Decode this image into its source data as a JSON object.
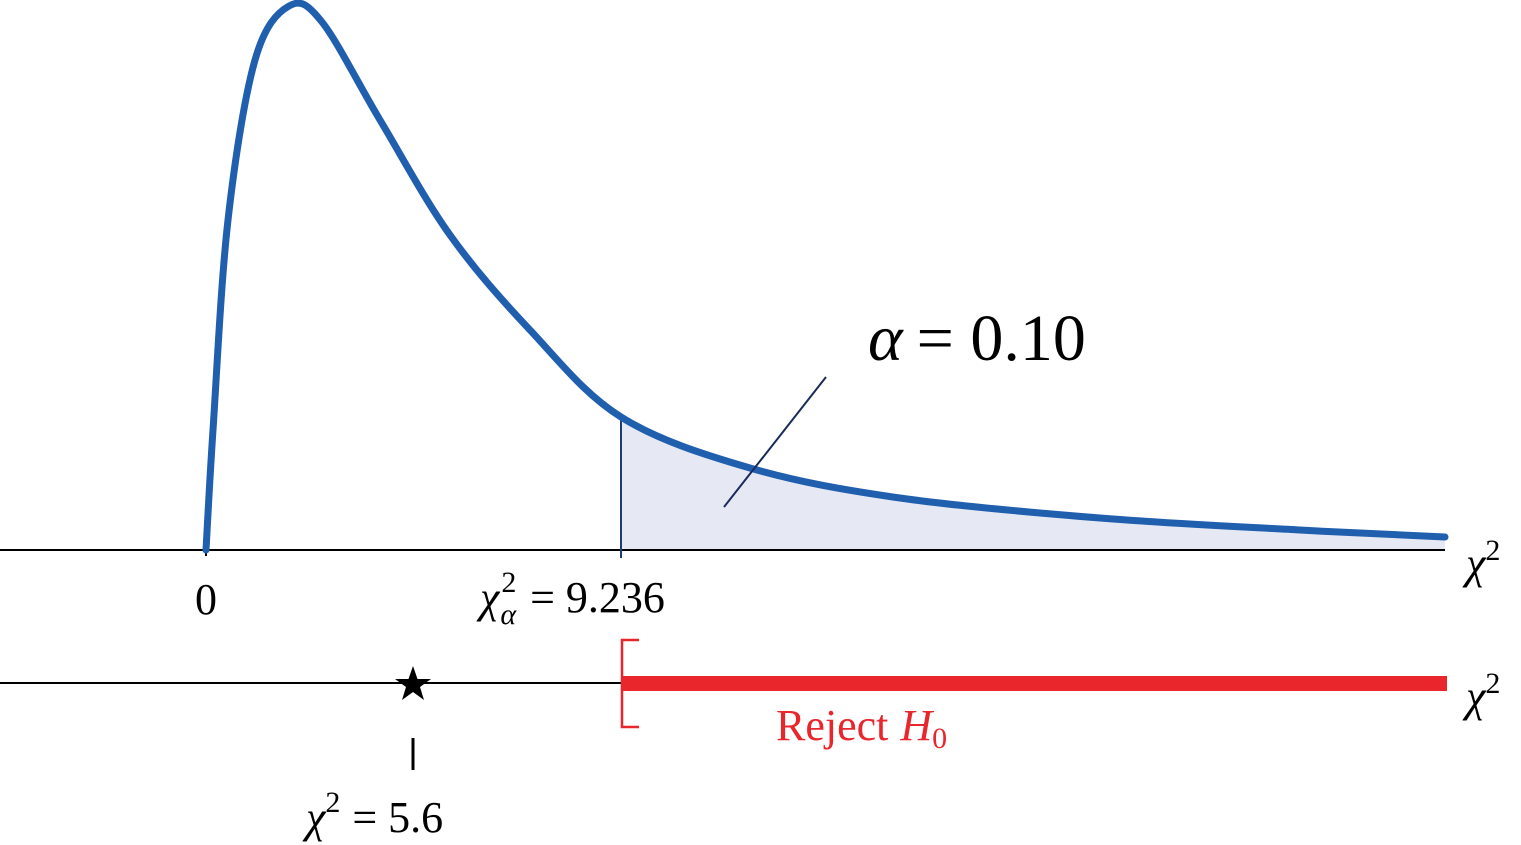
{
  "top_axis": {
    "origin": "0",
    "variable": {
      "base": "χ",
      "sup": "2"
    }
  },
  "critical_value": {
    "base": "χ",
    "sup": "2",
    "sub": "α",
    "relation": "= 9.236"
  },
  "significance": {
    "symbol": "α",
    "relation": "= 0.10"
  },
  "bottom_axis": {
    "variable": {
      "base": "χ",
      "sup": "2"
    },
    "rejection_region": {
      "text": "Reject",
      "symbol": "H",
      "sub": "0"
    },
    "test_statistic": {
      "base": "χ",
      "sup": "2",
      "relation": "= 5.6"
    }
  }
}
